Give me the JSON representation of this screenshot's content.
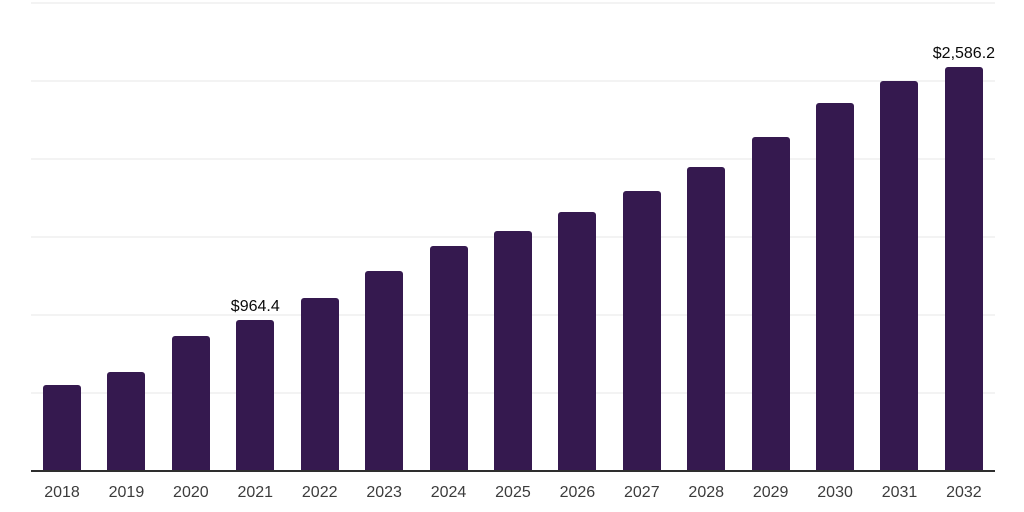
{
  "chart_data": {
    "type": "bar",
    "title": "",
    "xlabel": "",
    "ylabel": "",
    "categories": [
      "2018",
      "2019",
      "2020",
      "2021",
      "2022",
      "2023",
      "2024",
      "2025",
      "2026",
      "2027",
      "2028",
      "2029",
      "2030",
      "2031",
      "2032"
    ],
    "values": [
      545,
      630,
      858,
      964.4,
      1104,
      1278,
      1436,
      1532,
      1653,
      1789,
      1942,
      2135,
      2352,
      2494,
      2586.2
    ],
    "data_labels": {
      "2021": "$964.4",
      "2032": "$2,586.2"
    },
    "ylim": [
      0,
      3000
    ],
    "gridline_values": [
      500,
      1000,
      1500,
      2000,
      2500,
      3000
    ],
    "grid": "horizontal",
    "legend": "none",
    "y_axis_tick_labels_visible": false,
    "colors": {
      "bar": "#35194F",
      "axis_line": "#2E2E2E",
      "gridline": "#F3F3F3",
      "tick_label": "#3C3C3C",
      "data_label": "#0A0A0A",
      "background": "#FFFFFF"
    }
  }
}
